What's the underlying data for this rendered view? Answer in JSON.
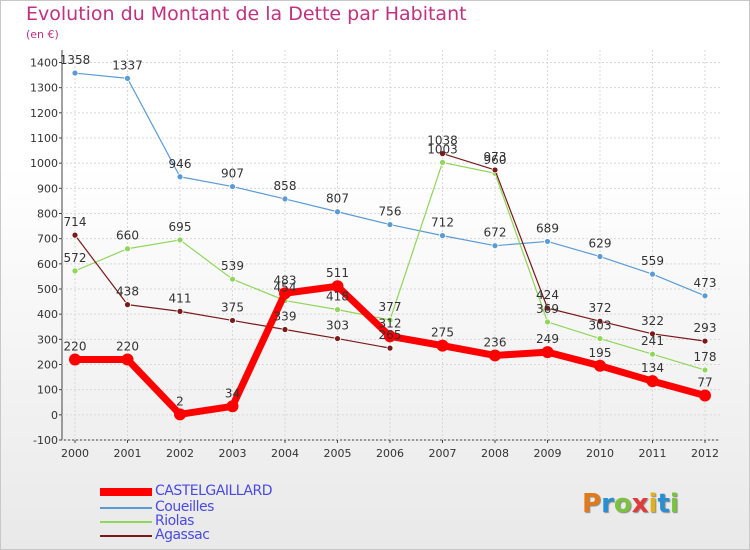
{
  "header": {
    "title": "Evolution du Montant de la Dette par Habitant",
    "subtitle": "(en €)"
  },
  "logo": {
    "text": "Proxiti",
    "colors": [
      "#e07b1c",
      "#2a8fd0",
      "#7cc242",
      "#e03a3a",
      "#e0b21c",
      "#2a8fd0",
      "#7cc242"
    ]
  },
  "chart_data": {
    "type": "line",
    "x": [
      "2000",
      "2001",
      "2002",
      "2003",
      "2004",
      "2005",
      "2006",
      "2007",
      "2008",
      "2009",
      "2010",
      "2011",
      "2012"
    ],
    "ylim": [
      -100,
      1400
    ],
    "yticks": [
      "-100",
      "0",
      "100",
      "200",
      "300",
      "400",
      "500",
      "600",
      "700",
      "800",
      "900",
      "1000",
      "1100",
      "1200",
      "1300",
      "1400"
    ],
    "grid": true,
    "legend_position": "bottom-left",
    "series": [
      {
        "name": "Coueilles",
        "color": "#5b9bd5",
        "values": [
          1358,
          1337,
          946,
          907,
          858,
          807,
          756,
          712,
          672,
          689,
          629,
          559,
          473
        ],
        "labels": [
          "1358",
          "1337",
          "946",
          "907",
          "858",
          "807",
          "756",
          "712",
          "672",
          "689",
          "629",
          "559",
          "473"
        ]
      },
      {
        "name": "Riolas",
        "color": "#8fd65a",
        "values": [
          572,
          660,
          695,
          539,
          454,
          418,
          377,
          1003,
          960,
          369,
          303,
          241,
          178
        ],
        "labels": [
          "572",
          "660",
          "695",
          "539",
          "454",
          "418",
          "377",
          "1003",
          "960",
          "369",
          "303",
          "241",
          "178"
        ]
      },
      {
        "name": "Agassac",
        "color": "#7a1a1a",
        "values": [
          714,
          438,
          411,
          375,
          339,
          303,
          265,
          1038,
          973,
          424,
          372,
          322,
          293
        ],
        "labels": [
          "714",
          "438",
          "411",
          "375",
          "339",
          "303",
          "265",
          "1038",
          "973",
          "424",
          "372",
          "322",
          "293"
        ],
        "break_after_index": 6
      },
      {
        "name": "CASTELGAILLARD",
        "color": "#ff0000",
        "values": [
          220,
          220,
          2,
          34,
          483,
          511,
          312,
          275,
          236,
          249,
          195,
          134,
          77
        ],
        "labels": [
          "220",
          "220",
          "2",
          "34",
          "483",
          "511",
          "312",
          "275",
          "236",
          "249",
          "195",
          "134",
          "77"
        ]
      }
    ],
    "legend": [
      "CASTELGAILLARD",
      "Coueilles",
      "Riolas",
      "Agassac"
    ]
  }
}
